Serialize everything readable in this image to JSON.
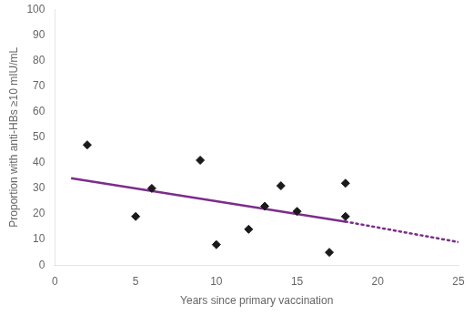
{
  "chart_data": {
    "type": "scatter",
    "xlabel": "Years since primary vaccination",
    "ylabel": "Proportion with anti-HBs ≥10 mIU/mL",
    "series": [
      {
        "type": "scatter",
        "x": [
          2,
          5,
          6,
          9,
          10,
          12,
          13,
          14,
          15,
          17,
          18,
          18
        ],
        "values": [
          47,
          19,
          30,
          41,
          8,
          14,
          23,
          31,
          21,
          5,
          19,
          32
        ],
        "color": "#1a1a1a",
        "marker": "diamond"
      },
      {
        "type": "line",
        "x": [
          1,
          18
        ],
        "values": [
          34.0,
          17.0
        ],
        "color": "#7B2D8B",
        "line_style": "solid"
      },
      {
        "type": "line",
        "x": [
          18,
          25
        ],
        "values": [
          17.0,
          9.0
        ],
        "color": "#7B2D8B",
        "line_style": "dotted"
      }
    ],
    "xlim": [
      0,
      25
    ],
    "ylim": [
      0,
      100
    ],
    "xticks": [
      0,
      5,
      10,
      15,
      20,
      25
    ],
    "yticks": [
      0,
      10,
      20,
      30,
      40,
      50,
      60,
      70,
      80,
      90,
      100
    ],
    "grid": false
  }
}
